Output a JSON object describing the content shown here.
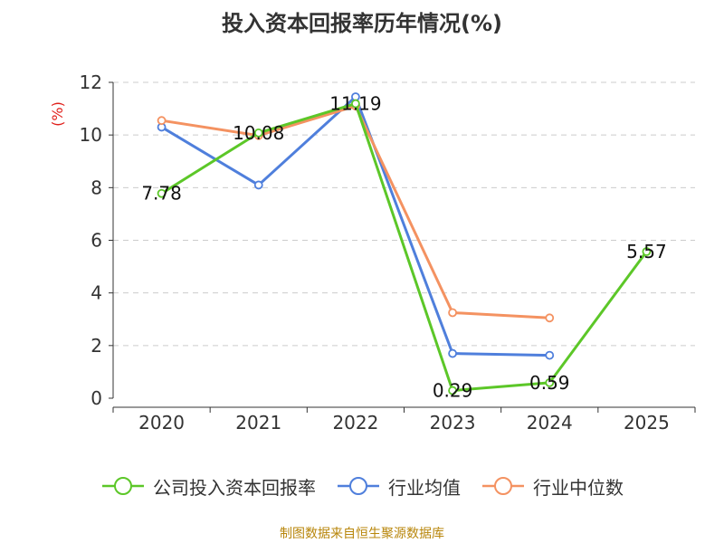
{
  "chart_data": {
    "type": "line",
    "title": "投入资本回报率历年情况(%)",
    "ylabel": "(%)",
    "xlabel": "",
    "ylim": [
      0,
      12
    ],
    "yticks": [
      "0",
      "2",
      "4",
      "6",
      "8",
      "10",
      "12"
    ],
    "categories": [
      "2020",
      "2021",
      "2022",
      "2023",
      "2024",
      "2025"
    ],
    "grid": "horizontal-dashed",
    "legend_position": "bottom",
    "series": [
      {
        "name": "公司投入资本回报率",
        "color": "#5cc728",
        "values": [
          7.78,
          10.08,
          11.19,
          0.29,
          0.59,
          5.57
        ],
        "labels": [
          "7.78",
          "10.08",
          "11.19",
          "0.29",
          "0.59",
          "5.57"
        ]
      },
      {
        "name": "行业均值",
        "color": "#4f7fdc",
        "values": [
          10.3,
          8.1,
          11.45,
          1.7,
          1.63,
          null
        ]
      },
      {
        "name": "行业中位数",
        "color": "#f49261",
        "values": [
          10.55,
          9.98,
          11.1,
          3.25,
          3.05,
          null
        ]
      }
    ]
  },
  "source": "制图数据来自恒生聚源数据库"
}
